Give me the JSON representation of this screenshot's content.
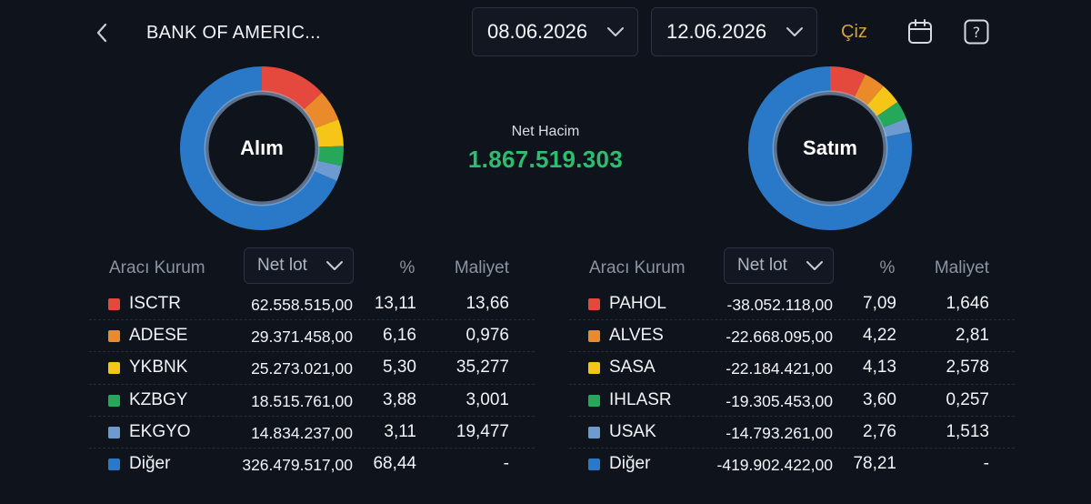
{
  "header": {
    "title": "BANK OF AMERIC...",
    "start_date": "08.06.2026",
    "end_date": "12.06.2026",
    "draw_label": "Çiz"
  },
  "summary": {
    "net_label": "Net Hacim",
    "net_value": "1.867.519.303",
    "net_color": "#2dbd6e"
  },
  "colors": {
    "red": "#e5483c",
    "orange": "#ea8a2a",
    "yellow": "#f5c518",
    "green": "#25a85a",
    "lightblue": "#6d9bd0",
    "blue": "#2a78c8"
  },
  "buy": {
    "donut_label": "Alım",
    "columns": {
      "broker": "Aracı Kurum",
      "sort": "Net lot",
      "pct": "%",
      "cost": "Maliyet"
    },
    "rows": [
      {
        "name": "ISCTR",
        "lot": "62.558.515,00",
        "pct": "13,11",
        "cost": "13,66",
        "color": "red",
        "share": 13.11
      },
      {
        "name": "ADESE",
        "lot": "29.371.458,00",
        "pct": "6,16",
        "cost": "0,976",
        "color": "orange",
        "share": 6.16
      },
      {
        "name": "YKBNK",
        "lot": "25.273.021,00",
        "pct": "5,30",
        "cost": "35,277",
        "color": "yellow",
        "share": 5.3
      },
      {
        "name": "KZBGY",
        "lot": "18.515.761,00",
        "pct": "3,88",
        "cost": "3,001",
        "color": "green",
        "share": 3.88
      },
      {
        "name": "EKGYO",
        "lot": "14.834.237,00",
        "pct": "3,11",
        "cost": "19,477",
        "color": "lightblue",
        "share": 3.11
      },
      {
        "name": "Diğer",
        "lot": "326.479.517,00",
        "pct": "68,44",
        "cost": "-",
        "color": "blue",
        "share": 68.44
      }
    ]
  },
  "sell": {
    "donut_label": "Satım",
    "columns": {
      "broker": "Aracı Kurum",
      "sort": "Net lot",
      "pct": "%",
      "cost": "Maliyet"
    },
    "rows": [
      {
        "name": "PAHOL",
        "lot": "-38.052.118,00",
        "pct": "7,09",
        "cost": "1,646",
        "color": "red",
        "share": 7.09
      },
      {
        "name": "ALVES",
        "lot": "-22.668.095,00",
        "pct": "4,22",
        "cost": "2,81",
        "color": "orange",
        "share": 4.22
      },
      {
        "name": "SASA",
        "lot": "-22.184.421,00",
        "pct": "4,13",
        "cost": "2,578",
        "color": "yellow",
        "share": 4.13
      },
      {
        "name": "IHLASR",
        "lot": "-19.305.453,00",
        "pct": "3,60",
        "cost": "0,257",
        "color": "green",
        "share": 3.6
      },
      {
        "name": "USAK",
        "lot": "-14.793.261,00",
        "pct": "2,76",
        "cost": "1,513",
        "color": "lightblue",
        "share": 2.76
      },
      {
        "name": "Diğer",
        "lot": "-419.902.422,00",
        "pct": "78,21",
        "cost": "-",
        "color": "blue",
        "share": 78.21
      }
    ]
  }
}
